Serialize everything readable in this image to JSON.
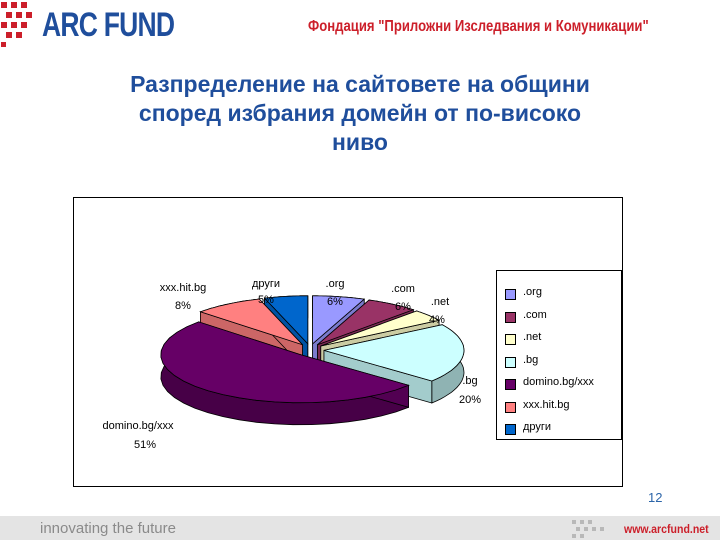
{
  "header": {
    "logo_text": "ARC FUND",
    "org_name": "Фондация \"Приложни Изследвания и Комуникации\"",
    "colors": {
      "brand_blue": "#1f4e9c",
      "brand_red": "#cc1f2a"
    }
  },
  "slide": {
    "title_line1": "Разпределение на сайтовете на общини",
    "title_line2": "според избрания домейн от по-високо",
    "title_line3": "ниво",
    "page_number": "12"
  },
  "footer": {
    "tagline": "innovating the future",
    "website": "www.arcfund.net"
  },
  "chart_data": {
    "type": "pie",
    "title": "",
    "three_d": true,
    "legend_position": "right",
    "categories": [
      ".org",
      ".com",
      ".net",
      ".bg",
      "domino.bg/xxx",
      "xxx.hit.bg",
      "други"
    ],
    "values": [
      6,
      6,
      4,
      20,
      51,
      8,
      5
    ],
    "value_labels": [
      "6%",
      "6%",
      "4%",
      "20%",
      "51%",
      "8%",
      "5%"
    ],
    "colors": [
      "#9999ff",
      "#993366",
      "#ffffcc",
      "#ccffff",
      "#660066",
      "#ff8080",
      "#0066cc"
    ]
  }
}
